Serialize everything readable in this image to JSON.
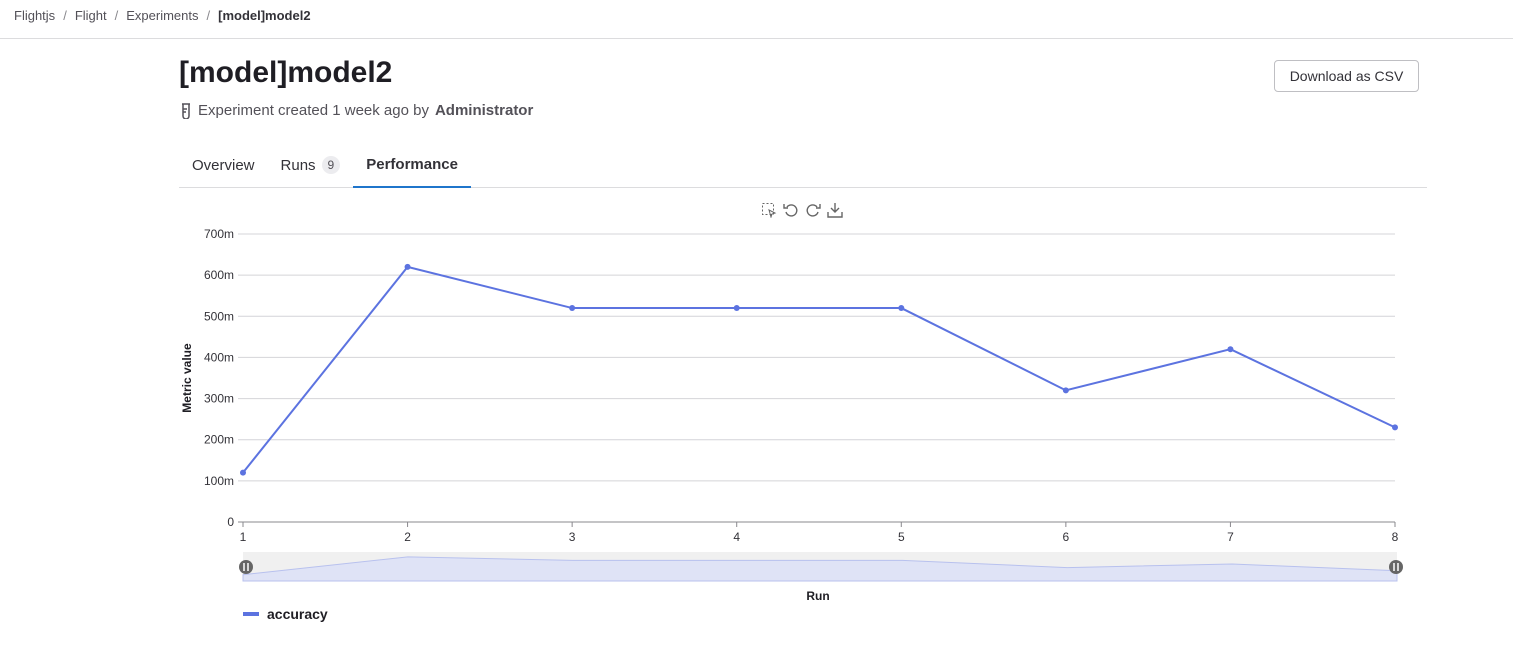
{
  "breadcrumb": [
    "Flightjs",
    "Flight",
    "Experiments",
    "[model]model2"
  ],
  "title": "[model]model2",
  "subtitle": {
    "text": "Experiment created 1 week ago by",
    "author": "Administrator",
    "icon": "flask-icon"
  },
  "download_label": "Download as CSV",
  "tabs": [
    {
      "label": "Overview"
    },
    {
      "label": "Runs",
      "count": "9"
    },
    {
      "label": "Performance",
      "active": true
    }
  ],
  "toolbar": [
    "data-zoom-icon",
    "undo-icon",
    "redo-icon",
    "download-icon"
  ],
  "chart_data": {
    "type": "line",
    "xlabel": "Run",
    "ylabel": "Metric value",
    "x": [
      1,
      2,
      3,
      4,
      5,
      6,
      7,
      8
    ],
    "ylim": [
      0,
      0.7
    ],
    "yticks": [
      "0",
      "100m",
      "200m",
      "300m",
      "400m",
      "500m",
      "600m",
      "700m"
    ],
    "grid": true,
    "legend_position": "bottom-left",
    "series": [
      {
        "name": "accuracy",
        "color": "#5c73e0",
        "values": [
          0.12,
          0.62,
          0.52,
          0.52,
          0.52,
          0.32,
          0.42,
          0.23
        ]
      }
    ]
  }
}
